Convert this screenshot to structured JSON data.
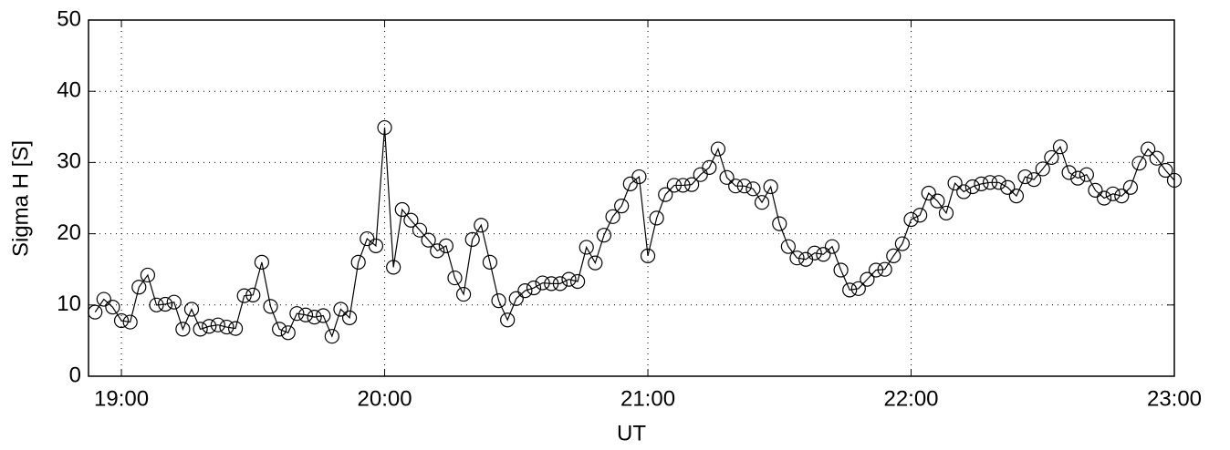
{
  "chart_data": {
    "type": "line",
    "y_label": "Sigma H [S]",
    "x_label": "UT",
    "color": "#000000",
    "grid": true,
    "x": [
      1134,
      1136,
      1138,
      1140,
      1142,
      1144,
      1146,
      1148,
      1150,
      1152,
      1154,
      1156,
      1158,
      1160,
      1162,
      1164,
      1166,
      1168,
      1170,
      1172,
      1174,
      1176,
      1178,
      1180,
      1182,
      1184,
      1186,
      1188,
      1190,
      1192,
      1194,
      1196,
      1198,
      1200,
      1202,
      1204,
      1206,
      1208,
      1210,
      1212,
      1214,
      1216,
      1218,
      1220,
      1222,
      1224,
      1226,
      1228,
      1230,
      1232,
      1234,
      1236,
      1238,
      1240,
      1242,
      1244,
      1246,
      1248,
      1250,
      1252,
      1254,
      1256,
      1258,
      1260,
      1262,
      1264,
      1266,
      1268,
      1270,
      1272,
      1274,
      1276,
      1278,
      1280,
      1282,
      1284,
      1286,
      1288,
      1290,
      1292,
      1294,
      1296,
      1298,
      1300,
      1302,
      1304,
      1306,
      1308,
      1310,
      1312,
      1314,
      1316,
      1318,
      1320,
      1322,
      1324,
      1326,
      1328,
      1330,
      1332,
      1334,
      1336,
      1338,
      1340,
      1342,
      1344,
      1346,
      1348,
      1350,
      1352,
      1354,
      1356,
      1358,
      1360,
      1362,
      1364,
      1366,
      1368,
      1370,
      1372,
      1374,
      1376,
      1378,
      1380
    ],
    "values": [
      9.0,
      10.8,
      9.7,
      7.8,
      7.6,
      12.5,
      14.2,
      10.0,
      10.1,
      10.4,
      6.6,
      9.4,
      6.6,
      7.0,
      7.2,
      6.9,
      6.7,
      11.3,
      11.4,
      16.0,
      9.8,
      6.6,
      6.1,
      8.8,
      8.6,
      8.3,
      8.5,
      5.6,
      9.4,
      8.2,
      16.0,
      19.3,
      18.3,
      34.9,
      15.3,
      23.4,
      21.9,
      20.5,
      19.1,
      17.6,
      18.3,
      13.8,
      11.5,
      19.2,
      21.2,
      16.0,
      10.6,
      7.9,
      10.9,
      12.0,
      12.4,
      13.1,
      13.0,
      13.0,
      13.6,
      13.3,
      18.1,
      15.9,
      19.8,
      22.4,
      23.9,
      27.0,
      28.0,
      16.9,
      22.2,
      25.5,
      26.8,
      26.8,
      26.9,
      28.3,
      29.3,
      31.9,
      27.9,
      26.7,
      26.7,
      26.3,
      24.4,
      26.6,
      21.4,
      18.2,
      16.6,
      16.4,
      17.3,
      17.1,
      18.2,
      14.9,
      12.1,
      12.3,
      13.6,
      14.9,
      15.0,
      16.9,
      18.6,
      22.0,
      22.6,
      25.7,
      24.6,
      22.9,
      27.1,
      25.9,
      26.6,
      27.0,
      27.2,
      27.2,
      26.5,
      25.3,
      28.0,
      27.6,
      29.1,
      30.7,
      32.2,
      28.6,
      27.8,
      28.3,
      26.1,
      25.0,
      25.6,
      25.3,
      26.5,
      29.9,
      31.9,
      30.6,
      28.9,
      27.5
    ],
    "xlim": [
      1132.5,
      1380
    ],
    "xticks": [
      {
        "value": 1140,
        "label": "19:00"
      },
      {
        "value": 1200,
        "label": "20:00"
      },
      {
        "value": 1260,
        "label": "21:00"
      },
      {
        "value": 1320,
        "label": "22:00"
      },
      {
        "value": 1380,
        "label": "23:00"
      }
    ],
    "ylim": [
      0,
      50
    ],
    "yticks": [
      0,
      10,
      20,
      30,
      40,
      50
    ]
  }
}
